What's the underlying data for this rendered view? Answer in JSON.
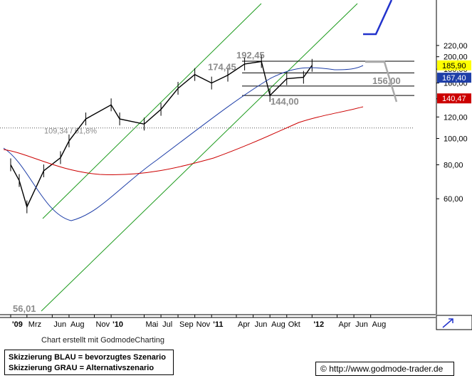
{
  "chart_data": {
    "type": "candlestick",
    "x_axis_labels": [
      "'09",
      "Mrz",
      "Jun",
      "Aug",
      "Nov",
      "'10",
      "Mai",
      "Jul",
      "Sep",
      "Nov",
      "'11",
      "Apr",
      "Jun",
      "Aug",
      "Okt",
      "'12",
      "Apr",
      "Jun",
      "Aug"
    ],
    "y_axis": {
      "scale": "log",
      "ticks": [
        60,
        80,
        100,
        120,
        140,
        160,
        180,
        200,
        220
      ],
      "range": [
        54,
        222
      ]
    },
    "price_tags": [
      {
        "value": 185.9,
        "label": "185,90",
        "color": "#ffff00",
        "text_color": "#000000"
      },
      {
        "value": 167.4,
        "label": "167,40",
        "color": "#1f3fa8",
        "text_color": "#ffffff"
      },
      {
        "value": 140.47,
        "label": "140,47",
        "color": "#cc0000",
        "text_color": "#ffffff"
      }
    ],
    "annotations": [
      {
        "text": "192,45",
        "value": 192.45
      },
      {
        "text": "174,45",
        "value": 174.45
      },
      {
        "text": "156,00",
        "value": 156.0
      },
      {
        "text": "144,00",
        "value": 144.0
      },
      {
        "text": "56,01",
        "value": 56.01
      },
      {
        "text": "109,34 / 61,8%",
        "value": 109.34
      }
    ],
    "horizontal_lines": [
      192.45,
      174.45,
      156.0,
      144.0,
      109.34
    ],
    "price_series_approx": [
      {
        "date": "2009-01",
        "value": 80
      },
      {
        "date": "2009-02",
        "value": 70
      },
      {
        "date": "2009-03",
        "value": 56.01
      },
      {
        "date": "2009-05",
        "value": 76
      },
      {
        "date": "2009-07",
        "value": 85
      },
      {
        "date": "2009-08",
        "value": 98
      },
      {
        "date": "2009-10",
        "value": 118
      },
      {
        "date": "2010-01",
        "value": 133
      },
      {
        "date": "2010-02",
        "value": 118
      },
      {
        "date": "2010-05",
        "value": 113
      },
      {
        "date": "2010-07",
        "value": 128
      },
      {
        "date": "2010-09",
        "value": 153
      },
      {
        "date": "2010-11",
        "value": 172
      },
      {
        "date": "2011-01",
        "value": 160
      },
      {
        "date": "2011-03",
        "value": 171
      },
      {
        "date": "2011-05",
        "value": 188
      },
      {
        "date": "2011-07",
        "value": 192
      },
      {
        "date": "2011-08",
        "value": 144
      },
      {
        "date": "2011-10",
        "value": 166
      },
      {
        "date": "2011-12",
        "value": 168
      },
      {
        "date": "2012-01",
        "value": 185.9
      }
    ],
    "moving_averages": [
      {
        "color": "#1f3fa8",
        "last": 167.4
      },
      {
        "color": "#cc0000",
        "last": 140.47
      }
    ],
    "scenario_colors": {
      "preferred": "#2233cc",
      "alternative": "#aaaaaa"
    },
    "channel_color": "#1b9a1b",
    "grid": false
  },
  "footer": {
    "credit": "Chart erstellt mit GodmodeCharting",
    "legend_line1": "Skizzierung BLAU = bevorzugtes Szenario",
    "legend_line2": "Skizzierung GRAU = Alternativszenario",
    "url": "http://www.godmode-trader.de",
    "copyright_symbol": "©"
  }
}
